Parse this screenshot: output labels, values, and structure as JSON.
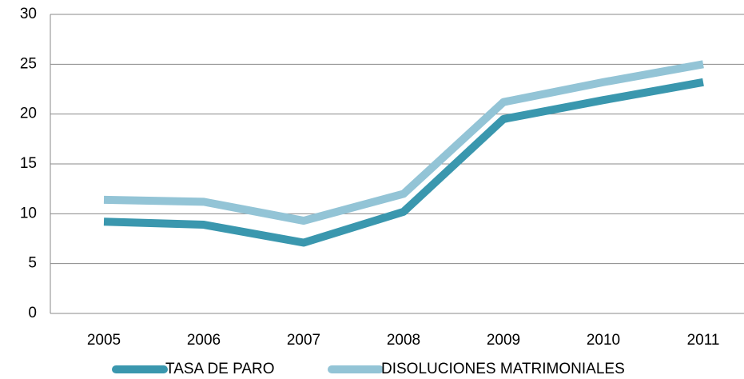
{
  "chart_data": {
    "type": "line",
    "categories": [
      "2005",
      "2006",
      "2007",
      "2008",
      "2009",
      "2010",
      "2011"
    ],
    "series": [
      {
        "name": "TASA DE PARO",
        "color": "#3a97ae",
        "values": [
          9.2,
          8.9,
          7.1,
          10.2,
          19.5,
          21.4,
          23.2
        ]
      },
      {
        "name": "DISOLUCIONES MATRIMONIALES",
        "color": "#93c4d6",
        "values": [
          11.4,
          11.2,
          9.3,
          12.0,
          21.2,
          23.2,
          25.0
        ]
      }
    ],
    "ylim": [
      0,
      30
    ],
    "yticks": [
      0,
      5,
      10,
      15,
      20,
      25,
      30
    ],
    "grid": true,
    "legend": "bottom"
  }
}
